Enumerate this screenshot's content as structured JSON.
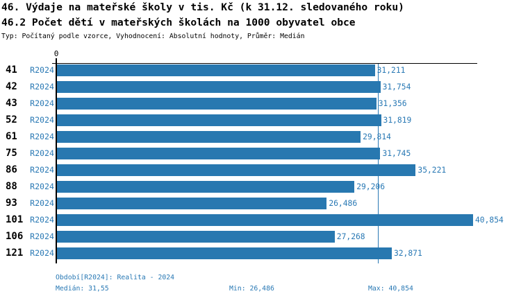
{
  "header": {
    "title1": "46. Výdaje na mateřské školy v tis. Kč (k 31.12. sledovaného roku)",
    "title2": "46.2 Počet dětí v mateřských školách na 1000 obyvatel obce",
    "subtitle": "Typ: Počítaný podle vzorce, Vyhodnocení: Absolutní hodnoty, Průměr: Medián"
  },
  "chart_data": {
    "type": "bar",
    "orientation": "horizontal",
    "title": "46. Výdaje na mateřské školy v tis. Kč (k 31.12. sledovaného roku)",
    "subtitle": "46.2 Počet dětí v mateřských školách na 1000 obyvatel obce",
    "series_label": "R2024",
    "categories": [
      "41",
      "42",
      "43",
      "52",
      "61",
      "75",
      "86",
      "88",
      "93",
      "101",
      "106",
      "121"
    ],
    "values": [
      31.211,
      31.754,
      31.356,
      31.819,
      29.814,
      31.745,
      35.221,
      29.206,
      26.486,
      40.854,
      27.268,
      32.871
    ],
    "value_labels": [
      "31,211",
      "31,754",
      "31,356",
      "31,819",
      "29,814",
      "31,745",
      "35,221",
      "29,206",
      "26,486",
      "40,854",
      "27,268",
      "32,871"
    ],
    "axis_zero_label": "0",
    "xlim": [
      0,
      41.33
    ],
    "median": 31.5505,
    "grid": false,
    "legend": "none"
  },
  "footer": {
    "period": "Období[R2024]: Realita - 2024",
    "median": "Medián: 31,55",
    "min": "Min: 26,486",
    "max": "Max: 40,854"
  },
  "colors": {
    "accent_blue": "#2878b4",
    "bar_blue": "#2878b0",
    "axis_black": "#000000"
  }
}
